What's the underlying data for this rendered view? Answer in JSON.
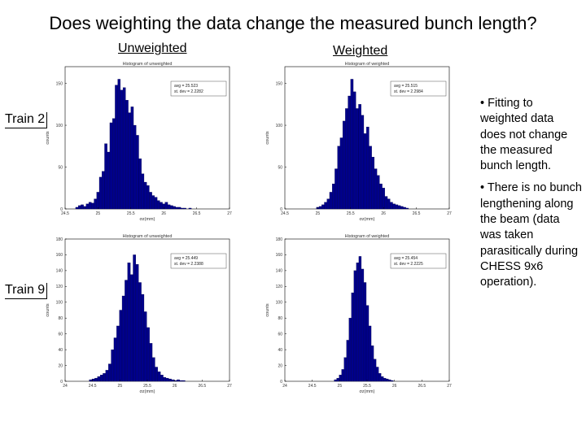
{
  "slide": {
    "title": "Does weighting the data change the measured bunch length?",
    "columns": {
      "unweighted": "Unweighted",
      "weighted": "Weighted"
    },
    "rows": {
      "train2": "Train 2",
      "train9": "Train 9"
    },
    "bullets": [
      "• Fitting to weighted data does not change the measured bunch length.",
      "• There is no bunch lengthening along the beam (data was taken parasitically during CHESS 9x6 operation)."
    ]
  },
  "chart_data": [
    {
      "type": "bar",
      "id": "train2-unweighted",
      "title": "Histogram of unweighted",
      "xlabel": "σz(mm)",
      "ylabel": "counts",
      "xlim": [
        24.5,
        27
      ],
      "ylim": [
        0,
        170
      ],
      "xticks": [
        "24.5",
        "25",
        "25.5",
        "26",
        "26.5",
        "27"
      ],
      "yticks": [
        "0",
        "50",
        "100",
        "150"
      ],
      "stats": [
        "avg = 25.523",
        "st. dev = 2.2282"
      ],
      "color": "#00008b",
      "bin_start": 24.66,
      "bin_width": 0.04,
      "values": [
        2,
        4,
        5,
        3,
        6,
        8,
        7,
        12,
        20,
        38,
        45,
        78,
        68,
        103,
        108,
        148,
        155,
        142,
        145,
        130,
        115,
        122,
        100,
        88,
        60,
        42,
        32,
        28,
        20,
        16,
        14,
        10,
        8,
        6,
        8,
        5,
        4,
        3,
        2,
        2,
        1,
        1,
        0,
        1
      ]
    },
    {
      "type": "bar",
      "id": "train2-weighted",
      "title": "Histogram of weighted",
      "xlabel": "σz(mm)",
      "ylabel": "counts",
      "xlim": [
        24.5,
        27
      ],
      "ylim": [
        0,
        170
      ],
      "xticks": [
        "24.5",
        "25",
        "25.5",
        "26",
        "26.5",
        "27"
      ],
      "yticks": [
        "0",
        "50",
        "100",
        "150"
      ],
      "stats": [
        "avg = 25.515",
        "st. dev = 2.2984"
      ],
      "color": "#00008b",
      "bin_start": 24.98,
      "bin_width": 0.04,
      "values": [
        2,
        3,
        5,
        8,
        12,
        20,
        30,
        48,
        75,
        85,
        105,
        120,
        135,
        155,
        140,
        120,
        125,
        112,
        90,
        98,
        75,
        62,
        48,
        40,
        30,
        25,
        15,
        12,
        8,
        6,
        5,
        4,
        3,
        2,
        1
      ]
    },
    {
      "type": "bar",
      "id": "train9-unweighted",
      "title": "Histogram of unweighted",
      "xlabel": "σz(mm)",
      "ylabel": "counts",
      "xlim": [
        24,
        27
      ],
      "ylim": [
        0,
        180
      ],
      "xticks": [
        "24",
        "24.5",
        "25",
        "25.5",
        "26",
        "26.5",
        "27"
      ],
      "yticks": [
        "0",
        "20",
        "40",
        "60",
        "80",
        "100",
        "120",
        "140",
        "160",
        "180"
      ],
      "stats": [
        "avg = 25.449",
        "st. dev = 2.2388"
      ],
      "color": "#00008b",
      "bin_start": 24.44,
      "bin_width": 0.05,
      "values": [
        2,
        3,
        4,
        6,
        8,
        10,
        14,
        22,
        40,
        55,
        70,
        90,
        108,
        128,
        150,
        135,
        160,
        148,
        125,
        110,
        88,
        68,
        48,
        30,
        18,
        12,
        8,
        5,
        4,
        3,
        2,
        1,
        2,
        1,
        1
      ]
    },
    {
      "type": "bar",
      "id": "train9-weighted",
      "title": "Histogram of weighted",
      "xlabel": "σz(mm)",
      "ylabel": "counts",
      "xlim": [
        24,
        27
      ],
      "ylim": [
        0,
        180
      ],
      "xticks": [
        "24",
        "24.5",
        "25",
        "25.5",
        "26",
        "26.5",
        "27"
      ],
      "yticks": [
        "0",
        "20",
        "40",
        "60",
        "80",
        "100",
        "120",
        "140",
        "160",
        "180"
      ],
      "stats": [
        "avg = 25.454",
        "st. dev = 2.2225"
      ],
      "color": "#00008b",
      "bin_start": 24.9,
      "bin_width": 0.045,
      "values": [
        2,
        4,
        8,
        15,
        30,
        52,
        80,
        112,
        140,
        150,
        158,
        142,
        125,
        96,
        70,
        45,
        28,
        18,
        10,
        6,
        4,
        3,
        2,
        1
      ]
    }
  ]
}
